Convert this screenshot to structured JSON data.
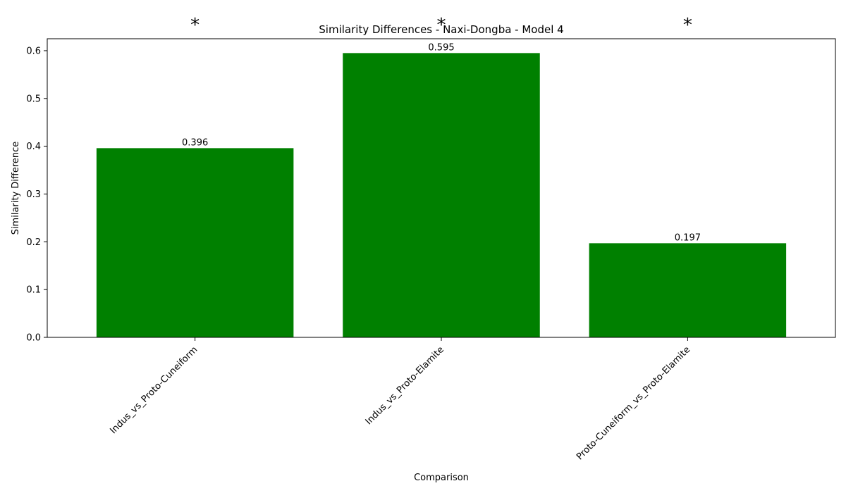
{
  "colors": {
    "bar": "#008000",
    "axis": "#000000",
    "background": "#ffffff"
  },
  "chart_data": {
    "type": "bar",
    "title": "Similarity Differences - Naxi-Dongba - Model 4",
    "xlabel": "Comparison",
    "ylabel": "Similarity Difference",
    "categories": [
      "Indus_vs_Proto-Cuneiform",
      "Indus_vs_Proto-Elamite",
      "Proto-Cuneiform_vs_Proto-Elamite"
    ],
    "values": [
      0.396,
      0.595,
      0.197
    ],
    "value_labels": [
      "0.396",
      "0.595",
      "0.197"
    ],
    "significance_markers": [
      "*",
      "*",
      "*"
    ],
    "ylim": [
      0,
      0.625
    ],
    "yticks": [
      0.0,
      0.1,
      0.2,
      0.3,
      0.4,
      0.5,
      0.6
    ],
    "ytick_labels": [
      "0.0",
      "0.1",
      "0.2",
      "0.3",
      "0.4",
      "0.5",
      "0.6"
    ],
    "grid": false,
    "legend": "none"
  }
}
